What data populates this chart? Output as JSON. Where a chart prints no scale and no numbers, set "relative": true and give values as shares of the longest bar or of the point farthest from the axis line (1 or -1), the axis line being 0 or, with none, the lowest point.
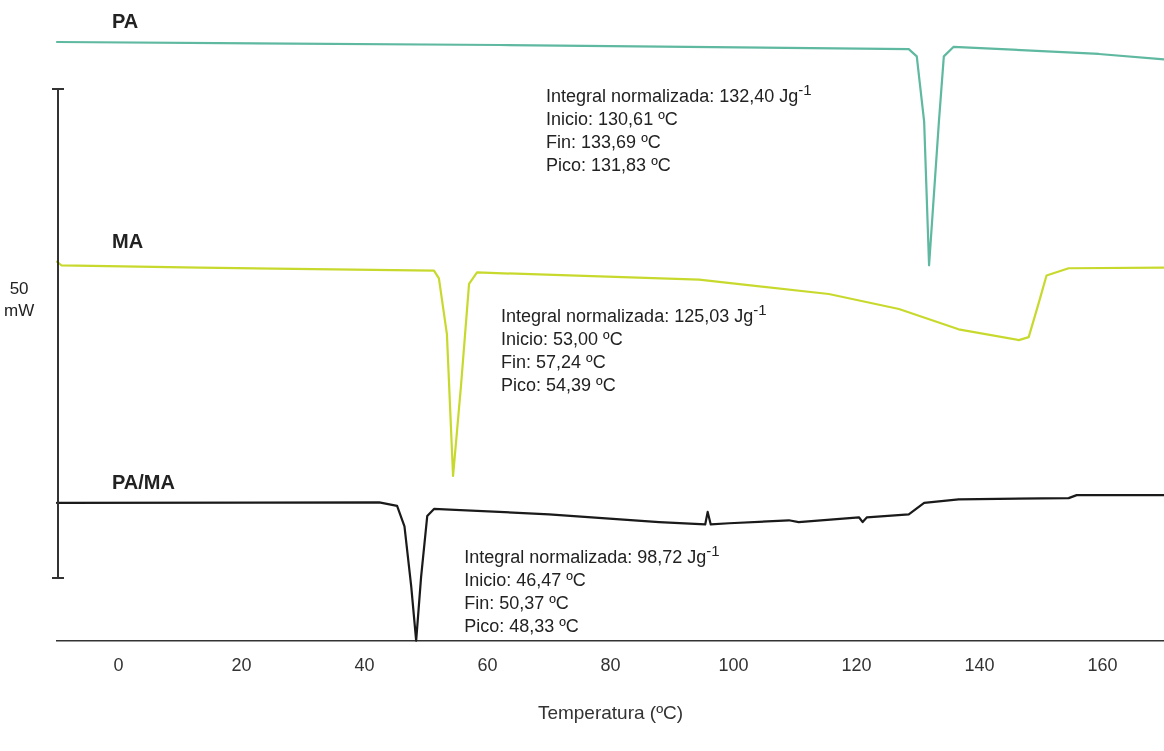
{
  "chart_data": {
    "type": "line",
    "relative": true,
    "xlabel": "Temperatura (ºC)",
    "ylabel": "50\nmW",
    "xlim": [
      -10,
      170
    ],
    "xticks": [
      0,
      20,
      40,
      60,
      80,
      100,
      120,
      140,
      160
    ],
    "grid": false,
    "legend": false,
    "marker": "none",
    "line_style": "solid",
    "series": [
      {
        "name": "PA",
        "color": "#5fb8a0",
        "x": [
          -10,
          61.9,
          128.5,
          129.8,
          131,
          131.8,
          133.4,
          134.2,
          135.8,
          159.4,
          170
        ],
        "values": [
          1.0,
          0.995,
          0.988,
          0.976,
          0.867,
          0.627,
          0.867,
          0.976,
          0.992,
          0.98,
          0.971
        ]
      },
      {
        "name": "MA",
        "color": "#c8d92e",
        "x": [
          -10,
          -9.3,
          13.2,
          51.3,
          52.1,
          53.4,
          54.4,
          55.7,
          57,
          58.3,
          94.4,
          115.5,
          126.9,
          136.6,
          146.4,
          148,
          149.6,
          150.9,
          154.5,
          170
        ],
        "values": [
          0.633,
          0.627,
          0.623,
          0.618,
          0.605,
          0.512,
          0.275,
          0.427,
          0.596,
          0.615,
          0.603,
          0.579,
          0.554,
          0.52,
          0.502,
          0.507,
          0.563,
          0.61,
          0.622,
          0.623
        ]
      },
      {
        "name": "PA/MA",
        "color": "#1a1a1a",
        "x": [
          -10,
          42.4,
          45.3,
          46.5,
          47.6,
          48.4,
          49.2,
          50.2,
          51.3,
          70,
          87.9,
          95.4,
          95.8,
          96.3,
          99.3,
          109,
          110.6,
          120.4,
          121,
          121.7,
          128.5,
          131,
          136.6,
          154.5,
          155.8,
          170
        ],
        "values": [
          0.23,
          0.231,
          0.225,
          0.191,
          0.09,
          0,
          0.106,
          0.208,
          0.22,
          0.211,
          0.198,
          0.194,
          0.215,
          0.194,
          0.196,
          0.201,
          0.198,
          0.206,
          0.198,
          0.206,
          0.211,
          0.23,
          0.236,
          0.238,
          0.243,
          0.243
        ]
      }
    ],
    "annotations": [
      "Integral normalizada: 132,40 Jg$^{-1}$\nInicio: 130,61 ºC\nFin: 133,69 ºC\nPico: 131,83 ºC",
      "Integral normalizada: 125,03 Jg$^{-1}$\nInicio: 53,00 ºC\nFin: 57,24 ºC\nPico: 54,39 ºC",
      "Integral normalizada: 98,72 Jg$^{-1}$\nInicio: 46,47 ºC\nFin: 50,37 ºC\nPico: 48,33 ºC"
    ]
  }
}
